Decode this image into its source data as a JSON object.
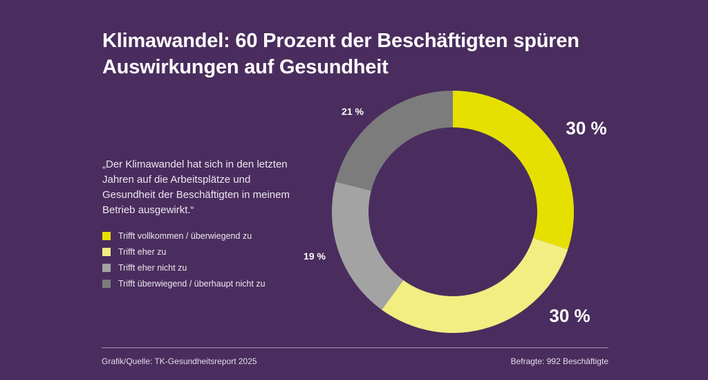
{
  "chart_data": {
    "type": "pie",
    "variant": "donut",
    "title": "Klimawandel: 60 Prozent der Beschäftigten spüren Auswirkungen auf Gesundheit",
    "subtitle": "„Der Klimawandel hat sich in den letzten Jahren auf die Arbeitsplätze und Gesundheit der Beschäftigten in meinem Betrieb ausgewirkt.“",
    "start_angle": "12 o'clock",
    "direction": "clockwise",
    "legend_position": "left",
    "slices": [
      {
        "label": "Trifft vollkommen / überwiegend zu",
        "value": 30,
        "display": "30 %",
        "color": "#e6e000",
        "label_size": "large"
      },
      {
        "label": "Trifft eher zu",
        "value": 30,
        "display": "30 %",
        "color": "#f2ee82",
        "label_size": "large"
      },
      {
        "label": "Trifft eher nicht zu",
        "value": 19,
        "display": "19 %",
        "color": "#a3a3a3",
        "label_size": "small"
      },
      {
        "label": "Trifft überwiegend / überhaupt nicht zu",
        "value": 21,
        "display": "21 %",
        "color": "#7c7c7c",
        "label_size": "small"
      }
    ],
    "unit": "%"
  },
  "header": {
    "title": "Klimawandel: 60 Prozent der Beschäftigten spüren Auswirkungen auf Gesundheit"
  },
  "quote": "„Der Klimawandel hat sich in den letzten Jahren auf die Arbeitsplätze und Gesundheit der Beschäftigten in meinem Betrieb ausgewirkt.“",
  "legend": {
    "items": [
      {
        "label": "Trifft vollkommen / überwiegend zu",
        "color": "#e6e000"
      },
      {
        "label": "Trifft eher zu",
        "color": "#f2ee82"
      },
      {
        "label": "Trifft eher nicht zu",
        "color": "#a3a3a3"
      },
      {
        "label": "Trifft überwiegend / überhaupt nicht zu",
        "color": "#7c7c7c"
      }
    ]
  },
  "footer": {
    "source": "Grafik/Quelle: TK-Gesundheitsreport 2025",
    "respondents": "Befragte: 992 Beschäftigte"
  },
  "colors": {
    "background": "#4a2d5e",
    "text": "#ffffff"
  }
}
